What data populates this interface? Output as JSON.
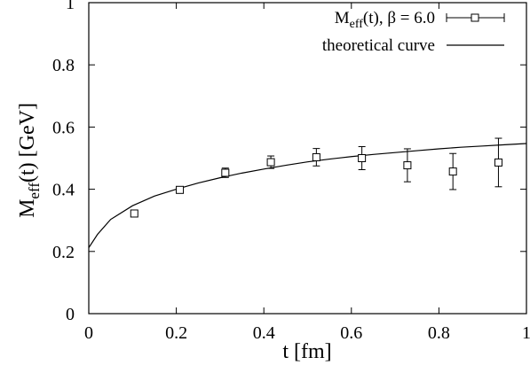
{
  "chart_data": {
    "type": "scatter",
    "xlabel": "t [fm]",
    "ylabel_main": "M",
    "ylabel_sub": "eff",
    "ylabel_rest": "(t) [GeV]",
    "xlim": [
      0,
      1
    ],
    "ylim": [
      0,
      1
    ],
    "x_ticks": [
      0,
      0.2,
      0.4,
      0.6,
      0.8,
      1
    ],
    "x_tick_labels": [
      "0",
      "0.2",
      "0.4",
      "0.6",
      "0.8",
      "1"
    ],
    "y_ticks": [
      0,
      0.2,
      0.4,
      0.6,
      0.8,
      1
    ],
    "y_tick_labels": [
      "0",
      "0.2",
      "0.4",
      "0.6",
      "0.8",
      "1"
    ],
    "grid": false,
    "legend_position": "top-right",
    "series": [
      {
        "name_main": "M",
        "name_sub": "eff",
        "name_rest": "(t), β = 6.0",
        "style": "points-errorbars",
        "marker": "open-square",
        "points": [
          {
            "x": 0.104,
            "y": 0.322,
            "err": 0.008
          },
          {
            "x": 0.208,
            "y": 0.398,
            "err": 0.01
          },
          {
            "x": 0.312,
            "y": 0.453,
            "err": 0.015
          },
          {
            "x": 0.416,
            "y": 0.487,
            "err": 0.02
          },
          {
            "x": 0.52,
            "y": 0.503,
            "err": 0.028
          },
          {
            "x": 0.624,
            "y": 0.5,
            "err": 0.037
          },
          {
            "x": 0.728,
            "y": 0.477,
            "err": 0.053
          },
          {
            "x": 0.832,
            "y": 0.457,
            "err": 0.058
          },
          {
            "x": 0.936,
            "y": 0.486,
            "err": 0.078
          }
        ]
      },
      {
        "name": "theoretical curve",
        "style": "line",
        "x": [
          0.0,
          0.02,
          0.05,
          0.1,
          0.15,
          0.2,
          0.25,
          0.3,
          0.35,
          0.4,
          0.45,
          0.5,
          0.55,
          0.6,
          0.65,
          0.7,
          0.75,
          0.8,
          0.85,
          0.9,
          0.95,
          1.0
        ],
        "y": [
          0.212,
          0.255,
          0.303,
          0.347,
          0.378,
          0.4,
          0.42,
          0.437,
          0.452,
          0.465,
          0.477,
          0.488,
          0.497,
          0.505,
          0.512,
          0.518,
          0.524,
          0.53,
          0.535,
          0.539,
          0.543,
          0.547
        ]
      }
    ]
  }
}
